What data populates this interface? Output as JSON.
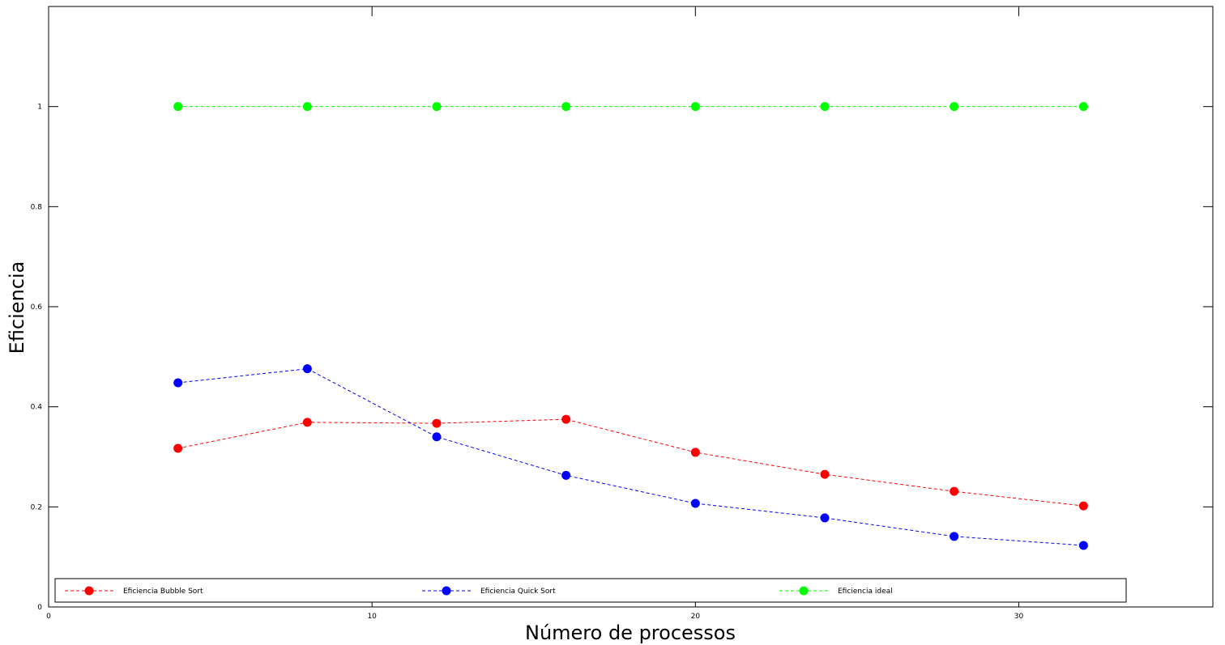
{
  "chart_data": {
    "type": "line",
    "title": "",
    "xlabel": "Número de processos",
    "ylabel": "Eficiencia",
    "xlim": [
      0,
      36
    ],
    "ylim": [
      0,
      1.2
    ],
    "xticks": [
      0,
      10,
      20,
      30
    ],
    "xtick_labels": [
      "0",
      "10",
      "20",
      "30"
    ],
    "yticks": [
      0,
      0.2,
      0.4,
      0.6,
      0.8,
      1
    ],
    "ytick_labels": [
      "0",
      "0.2",
      "0.4",
      "0.6",
      "0.8",
      "1"
    ],
    "grid": false,
    "legend_position": "bottom",
    "x": [
      4,
      8,
      12,
      16,
      20,
      24,
      28,
      32
    ],
    "series": [
      {
        "name": "Eficiencia Bubble Sort",
        "color": "#ff0000",
        "values": [
          0.317,
          0.369,
          0.367,
          0.375,
          0.309,
          0.265,
          0.231,
          0.202
        ]
      },
      {
        "name": "Eficiencia Quick Sort",
        "color": "#0000ff",
        "values": [
          0.448,
          0.476,
          0.34,
          0.263,
          0.207,
          0.178,
          0.141,
          0.123
        ]
      },
      {
        "name": "Eficiencia ideal",
        "color": "#00ff00",
        "values": [
          1,
          1,
          1,
          1,
          1,
          1,
          1,
          1
        ]
      }
    ]
  }
}
